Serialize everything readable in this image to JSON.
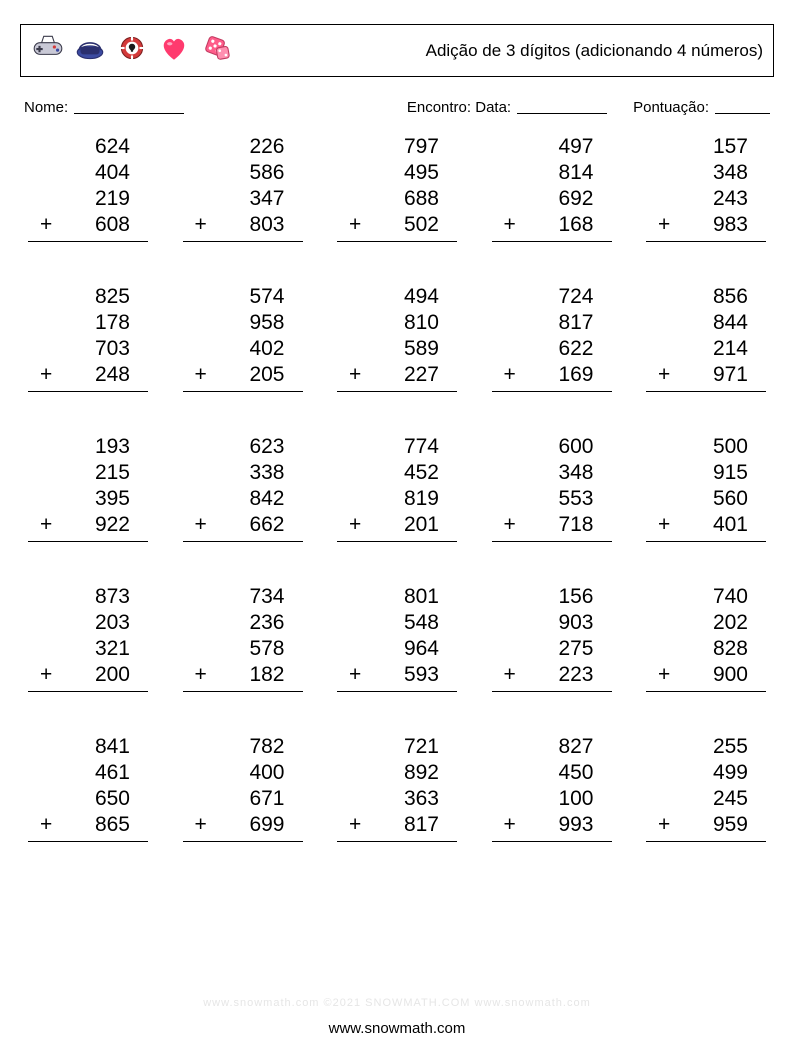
{
  "header": {
    "title": "Adição de 3 dígitos (adicionando 4 números)",
    "icons": [
      "gamepad-icon",
      "vr-headset-icon",
      "poker-chip-icon",
      "heart-icon",
      "dice-icon"
    ]
  },
  "meta": {
    "name_label": "Nome:",
    "encounter_label": "Encontro: Data:",
    "score_label": "Pontuação:"
  },
  "operator": "+",
  "problems": [
    [
      {
        "n": [
          "624",
          "404",
          "219",
          "608"
        ]
      },
      {
        "n": [
          "226",
          "586",
          "347",
          "803"
        ]
      },
      {
        "n": [
          "797",
          "495",
          "688",
          "502"
        ]
      },
      {
        "n": [
          "497",
          "814",
          "692",
          "168"
        ]
      },
      {
        "n": [
          "157",
          "348",
          "243",
          "983"
        ]
      }
    ],
    [
      {
        "n": [
          "825",
          "178",
          "703",
          "248"
        ]
      },
      {
        "n": [
          "574",
          "958",
          "402",
          "205"
        ]
      },
      {
        "n": [
          "494",
          "810",
          "589",
          "227"
        ]
      },
      {
        "n": [
          "724",
          "817",
          "622",
          "169"
        ]
      },
      {
        "n": [
          "856",
          "844",
          "214",
          "971"
        ]
      }
    ],
    [
      {
        "n": [
          "193",
          "215",
          "395",
          "922"
        ]
      },
      {
        "n": [
          "623",
          "338",
          "842",
          "662"
        ]
      },
      {
        "n": [
          "774",
          "452",
          "819",
          "201"
        ]
      },
      {
        "n": [
          "600",
          "348",
          "553",
          "718"
        ]
      },
      {
        "n": [
          "500",
          "915",
          "560",
          "401"
        ]
      }
    ],
    [
      {
        "n": [
          "873",
          "203",
          "321",
          "200"
        ]
      },
      {
        "n": [
          "734",
          "236",
          "578",
          "182"
        ]
      },
      {
        "n": [
          "801",
          "548",
          "964",
          "593"
        ]
      },
      {
        "n": [
          "156",
          "903",
          "275",
          "223"
        ]
      },
      {
        "n": [
          "740",
          "202",
          "828",
          "900"
        ]
      }
    ],
    [
      {
        "n": [
          "841",
          "461",
          "650",
          "865"
        ]
      },
      {
        "n": [
          "782",
          "400",
          "671",
          "699"
        ]
      },
      {
        "n": [
          "721",
          "892",
          "363",
          "817"
        ]
      },
      {
        "n": [
          "827",
          "450",
          "100",
          "993"
        ]
      },
      {
        "n": [
          "255",
          "499",
          "245",
          "959"
        ]
      }
    ]
  ],
  "footer": {
    "url": "www.snowmath.com",
    "copyright": "www.snowmath.com ©2021 SNOWMATH.COM www.snowmath.com"
  },
  "colors": {
    "gamepad_body": "#6b6f8a",
    "gamepad_accent": "#c9c9d6",
    "vr_body": "#3b4aa0",
    "vr_accent": "#2a2f6e",
    "chip_outer": "#d43a3a",
    "chip_inner": "#ffffff",
    "chip_spade": "#1a1a1a",
    "heart": "#ff3a6e",
    "heart_shine": "#ffc2d6",
    "dice": "#ff5c8a",
    "dice_dot": "#ffffff"
  }
}
